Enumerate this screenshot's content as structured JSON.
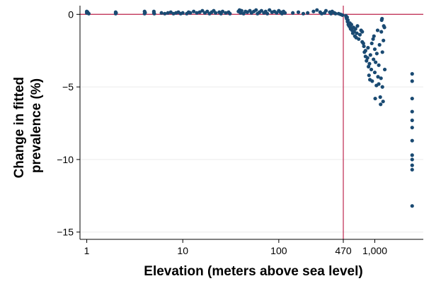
{
  "chart_data": {
    "type": "scatter",
    "title": "",
    "xlabel": "Elevation (meters above sea level)",
    "ylabel_lines": [
      "Change in fitted",
      "prevalence (%)"
    ],
    "x_scale": "log",
    "xlim": [
      0.85,
      3200
    ],
    "ylim": [
      -15.5,
      0.6
    ],
    "x_ticks": [
      {
        "value": 1,
        "label": "1"
      },
      {
        "value": 10,
        "label": "10"
      },
      {
        "value": 100,
        "label": "100"
      },
      {
        "value": 470,
        "label": "470"
      },
      {
        "value": 1000,
        "label": "1,000"
      }
    ],
    "y_ticks": [
      {
        "value": 0,
        "label": "0"
      },
      {
        "value": -5,
        "label": "−5"
      },
      {
        "value": -10,
        "label": "−10"
      },
      {
        "value": -15,
        "label": "−15"
      }
    ],
    "reference_lines": {
      "x": 470,
      "y": 0,
      "color": "#c2375b"
    },
    "grid": true,
    "marker_color": "#1a4a72",
    "points": [
      [
        1,
        0.2
      ],
      [
        1,
        0.1
      ],
      [
        1.02,
        0.15
      ],
      [
        1.05,
        0.05
      ],
      [
        2,
        0.15
      ],
      [
        2,
        0.05
      ],
      [
        2.02,
        0.1
      ],
      [
        4,
        0.2
      ],
      [
        4,
        0.05
      ],
      [
        4.05,
        0.12
      ],
      [
        5,
        0.1
      ],
      [
        5,
        0.2
      ],
      [
        5.05,
        0.05
      ],
      [
        6,
        0.1
      ],
      [
        6.5,
        0.05
      ],
      [
        7,
        0.1
      ],
      [
        7.5,
        0.15
      ],
      [
        8,
        0.05
      ],
      [
        8.5,
        0.1
      ],
      [
        9,
        0.15
      ],
      [
        9.5,
        0.05
      ],
      [
        10,
        0.1
      ],
      [
        11,
        0.05
      ],
      [
        11.5,
        0.15
      ],
      [
        12,
        0.1
      ],
      [
        13,
        0.2
      ],
      [
        14,
        0.1
      ],
      [
        15,
        0.15
      ],
      [
        16,
        0.25
      ],
      [
        17,
        0.1
      ],
      [
        18,
        0.2
      ],
      [
        19,
        0.05
      ],
      [
        20,
        0.15
      ],
      [
        21,
        0.25
      ],
      [
        22,
        0.1
      ],
      [
        24,
        0.15
      ],
      [
        25,
        0.05
      ],
      [
        26,
        0.2
      ],
      [
        28,
        0.1
      ],
      [
        30,
        0.15
      ],
      [
        31,
        0.05
      ],
      [
        38,
        0.2
      ],
      [
        39,
        0.3
      ],
      [
        40,
        0.1
      ],
      [
        41,
        0.25
      ],
      [
        43,
        0.05
      ],
      [
        45,
        0.2
      ],
      [
        47,
        0.15
      ],
      [
        50,
        0.25
      ],
      [
        52,
        0.1
      ],
      [
        55,
        0.2
      ],
      [
        58,
        0.3
      ],
      [
        60,
        0.05
      ],
      [
        63,
        0.15
      ],
      [
        66,
        0.25
      ],
      [
        70,
        0.1
      ],
      [
        73,
        0.2
      ],
      [
        76,
        0.05
      ],
      [
        80,
        0.3
      ],
      [
        85,
        0.15
      ],
      [
        90,
        0.2
      ],
      [
        95,
        0.1
      ],
      [
        100,
        0.25
      ],
      [
        104,
        0.15
      ],
      [
        108,
        0.05
      ],
      [
        112,
        0.2
      ],
      [
        116,
        0.1
      ],
      [
        140,
        0.1
      ],
      [
        160,
        0.15
      ],
      [
        180,
        0.05
      ],
      [
        200,
        0.1
      ],
      [
        230,
        0.2
      ],
      [
        250,
        0.3
      ],
      [
        270,
        0.15
      ],
      [
        280,
        0.05
      ],
      [
        300,
        0.1
      ],
      [
        310,
        0.25
      ],
      [
        340,
        0.15
      ],
      [
        350,
        0.05
      ],
      [
        360,
        0.2
      ],
      [
        380,
        0.1
      ],
      [
        390,
        0.05
      ],
      [
        420,
        0.05
      ],
      [
        440,
        0.0
      ],
      [
        460,
        -0.05
      ],
      [
        500,
        -0.1
      ],
      [
        505,
        -0.2
      ],
      [
        510,
        -0.3
      ],
      [
        515,
        -0.2
      ],
      [
        520,
        -0.5
      ],
      [
        525,
        -0.4
      ],
      [
        530,
        -0.7
      ],
      [
        540,
        -0.8
      ],
      [
        550,
        -0.6
      ],
      [
        555,
        -0.9
      ],
      [
        560,
        -1.0
      ],
      [
        570,
        -0.7
      ],
      [
        580,
        -1.1
      ],
      [
        590,
        -1.3
      ],
      [
        600,
        -0.9
      ],
      [
        610,
        -1.2
      ],
      [
        620,
        -1.5
      ],
      [
        630,
        -1.0
      ],
      [
        640,
        -1.6
      ],
      [
        650,
        -1.3
      ],
      [
        660,
        -0.8
      ],
      [
        680,
        -1.7
      ],
      [
        700,
        -1.4
      ],
      [
        720,
        -1.1
      ],
      [
        740,
        -1.9
      ],
      [
        760,
        -2.0
      ],
      [
        740,
        -1.2
      ],
      [
        770,
        -2.2
      ],
      [
        780,
        -2.6
      ],
      [
        800,
        -2.5
      ],
      [
        800,
        -2.9
      ],
      [
        820,
        -3.2
      ],
      [
        840,
        -3.0
      ],
      [
        850,
        -2.3
      ],
      [
        860,
        -3.6
      ],
      [
        870,
        -4.2
      ],
      [
        880,
        -3.4
      ],
      [
        890,
        -4.5
      ],
      [
        900,
        -2.8
      ],
      [
        920,
        -3.8
      ],
      [
        930,
        -2.0
      ],
      [
        940,
        -4.6
      ],
      [
        960,
        -1.7
      ],
      [
        970,
        -3.1
      ],
      [
        980,
        -1.5
      ],
      [
        1000,
        -4.0
      ],
      [
        1000,
        -2.4
      ],
      [
        1010,
        -5.8
      ],
      [
        1020,
        -3.3
      ],
      [
        1040,
        -4.9
      ],
      [
        1050,
        -2.7
      ],
      [
        1070,
        -1.1
      ],
      [
        1080,
        -4.3
      ],
      [
        1100,
        -3.5
      ],
      [
        1100,
        -4.8
      ],
      [
        1120,
        -2.1
      ],
      [
        1140,
        -5.7
      ],
      [
        1150,
        -6.2
      ],
      [
        1160,
        -4.4
      ],
      [
        1170,
        -1.2
      ],
      [
        1180,
        -0.4
      ],
      [
        1190,
        -0.3
      ],
      [
        1200,
        -2.6
      ],
      [
        1200,
        -5.0
      ],
      [
        1220,
        -6.0
      ],
      [
        1230,
        -1.8
      ],
      [
        1240,
        -0.8
      ],
      [
        1260,
        -0.9
      ],
      [
        1270,
        -3.8
      ],
      [
        2450,
        -4.1
      ],
      [
        2450,
        -4.6
      ],
      [
        2450,
        -5.8
      ],
      [
        2450,
        -6.7
      ],
      [
        2450,
        -7.3
      ],
      [
        2450,
        -7.8
      ],
      [
        2450,
        -8.7
      ],
      [
        2450,
        -9.7
      ],
      [
        2450,
        -10.0
      ],
      [
        2450,
        -10.4
      ],
      [
        2450,
        -10.7
      ],
      [
        2450,
        -13.2
      ]
    ]
  }
}
